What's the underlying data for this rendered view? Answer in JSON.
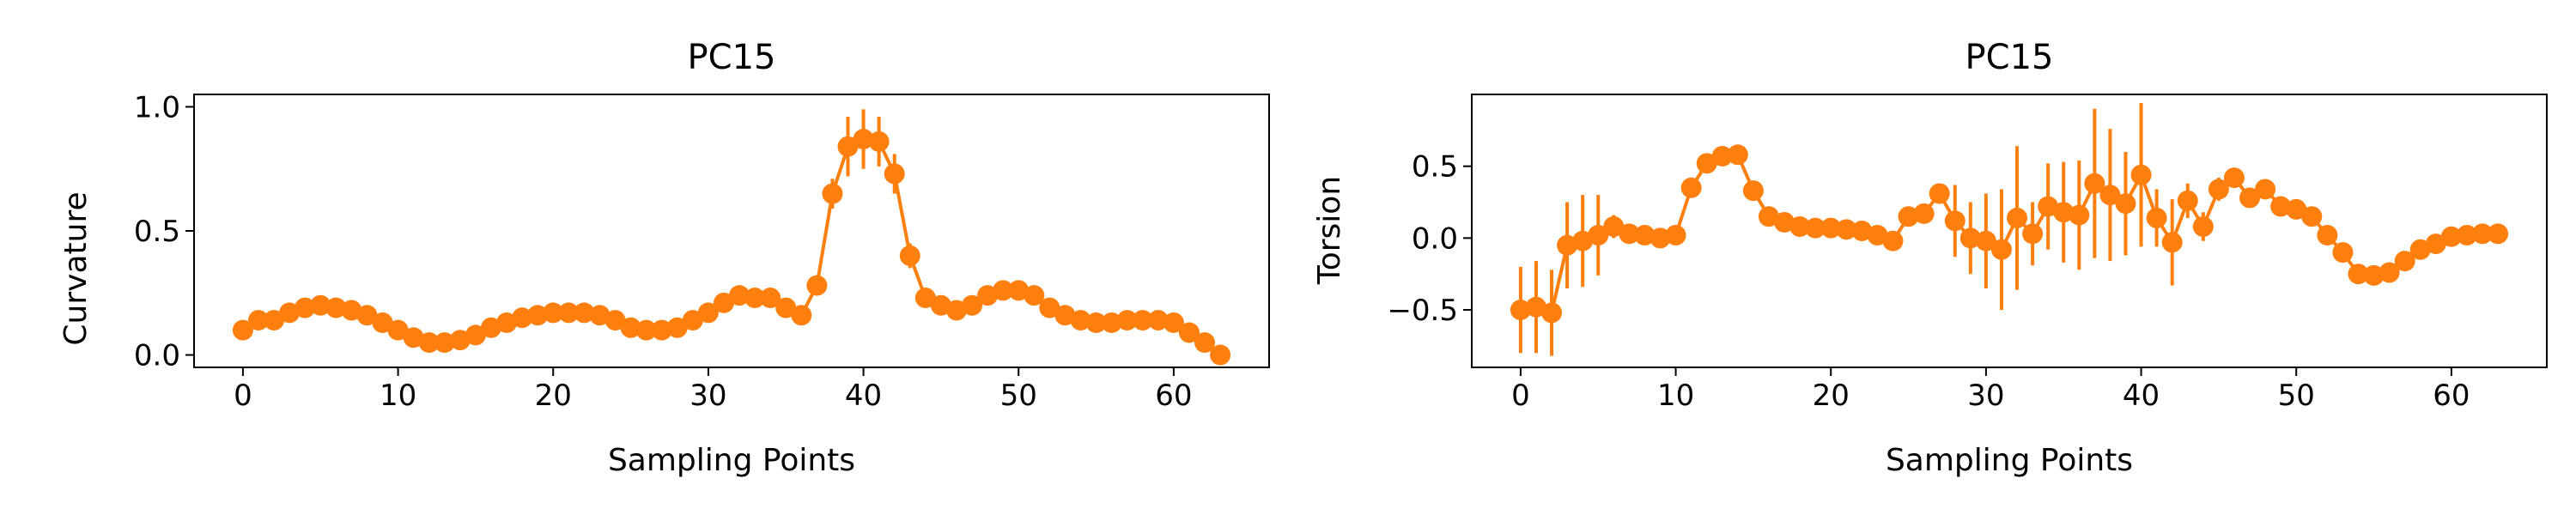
{
  "chart_data": [
    {
      "type": "line",
      "title": "PC15",
      "xlabel": "Sampling Points",
      "ylabel": "Curvature",
      "xlim": [
        -3.15,
        66.15
      ],
      "ylim": [
        -0.05,
        1.05
      ],
      "xticks": [
        0,
        10,
        20,
        30,
        40,
        50,
        60
      ],
      "xtick_labels": [
        "0",
        "10",
        "20",
        "30",
        "40",
        "50",
        "60"
      ],
      "yticks": [
        0.0,
        0.5,
        1.0
      ],
      "ytick_labels": [
        "0.0",
        "0.5",
        "1.0"
      ],
      "grid": false,
      "series": [
        {
          "color": "#ff7f0e",
          "marker": "circle",
          "x": [
            0,
            1,
            2,
            3,
            4,
            5,
            6,
            7,
            8,
            9,
            10,
            11,
            12,
            13,
            14,
            15,
            16,
            17,
            18,
            19,
            20,
            21,
            22,
            23,
            24,
            25,
            26,
            27,
            28,
            29,
            30,
            31,
            32,
            33,
            34,
            35,
            36,
            37,
            38,
            39,
            40,
            41,
            42,
            43,
            44,
            45,
            46,
            47,
            48,
            49,
            50,
            51,
            52,
            53,
            54,
            55,
            56,
            57,
            58,
            59,
            60,
            61,
            62,
            63
          ],
          "y": [
            0.1,
            0.14,
            0.14,
            0.17,
            0.19,
            0.2,
            0.19,
            0.18,
            0.16,
            0.13,
            0.1,
            0.07,
            0.05,
            0.05,
            0.06,
            0.08,
            0.11,
            0.13,
            0.15,
            0.16,
            0.17,
            0.17,
            0.17,
            0.16,
            0.14,
            0.11,
            0.1,
            0.1,
            0.11,
            0.14,
            0.17,
            0.21,
            0.24,
            0.23,
            0.23,
            0.19,
            0.16,
            0.28,
            0.65,
            0.84,
            0.87,
            0.86,
            0.73,
            0.4,
            0.23,
            0.2,
            0.18,
            0.2,
            0.24,
            0.26,
            0.26,
            0.24,
            0.19,
            0.16,
            0.14,
            0.13,
            0.13,
            0.14,
            0.14,
            0.14,
            0.13,
            0.09,
            0.05,
            0.0
          ],
          "err": [
            0.01,
            0.01,
            0.01,
            0.01,
            0.01,
            0.01,
            0.01,
            0.01,
            0.01,
            0.01,
            0.01,
            0.01,
            0.01,
            0.01,
            0.01,
            0.01,
            0.01,
            0.01,
            0.01,
            0.01,
            0.01,
            0.01,
            0.01,
            0.01,
            0.01,
            0.01,
            0.01,
            0.01,
            0.01,
            0.01,
            0.02,
            0.02,
            0.02,
            0.02,
            0.02,
            0.02,
            0.02,
            0.03,
            0.06,
            0.12,
            0.12,
            0.1,
            0.08,
            0.05,
            0.02,
            0.02,
            0.02,
            0.02,
            0.02,
            0.02,
            0.02,
            0.02,
            0.02,
            0.02,
            0.01,
            0.01,
            0.01,
            0.01,
            0.01,
            0.01,
            0.01,
            0.01,
            0.01,
            0.01
          ]
        }
      ]
    },
    {
      "type": "line",
      "title": "PC15",
      "xlabel": "Sampling Points",
      "ylabel": "Torsion",
      "xlim": [
        -3.15,
        66.15
      ],
      "ylim": [
        -0.9,
        1.0
      ],
      "xticks": [
        0,
        10,
        20,
        30,
        40,
        50,
        60
      ],
      "xtick_labels": [
        "0",
        "10",
        "20",
        "30",
        "40",
        "50",
        "60"
      ],
      "yticks": [
        -0.5,
        0.0,
        0.5
      ],
      "ytick_labels": [
        "−0.5",
        "0.0",
        "0.5"
      ],
      "grid": false,
      "series": [
        {
          "color": "#ff7f0e",
          "marker": "circle",
          "x": [
            0,
            1,
            2,
            3,
            4,
            5,
            6,
            7,
            8,
            9,
            10,
            11,
            12,
            13,
            14,
            15,
            16,
            17,
            18,
            19,
            20,
            21,
            22,
            23,
            24,
            25,
            26,
            27,
            28,
            29,
            30,
            31,
            32,
            33,
            34,
            35,
            36,
            37,
            38,
            39,
            40,
            41,
            42,
            43,
            44,
            45,
            46,
            47,
            48,
            49,
            50,
            51,
            52,
            53,
            54,
            55,
            56,
            57,
            58,
            59,
            60,
            61,
            62,
            63
          ],
          "y": [
            -0.5,
            -0.48,
            -0.52,
            -0.05,
            -0.02,
            0.02,
            0.08,
            0.03,
            0.02,
            0.0,
            0.02,
            0.35,
            0.52,
            0.57,
            0.58,
            0.33,
            0.15,
            0.11,
            0.08,
            0.07,
            0.07,
            0.06,
            0.05,
            0.02,
            -0.02,
            0.15,
            0.17,
            0.31,
            0.12,
            0.0,
            -0.02,
            -0.08,
            0.14,
            0.03,
            0.22,
            0.18,
            0.16,
            0.38,
            0.3,
            0.24,
            0.44,
            0.14,
            -0.03,
            0.26,
            0.08,
            0.34,
            0.42,
            0.28,
            0.34,
            0.22,
            0.2,
            0.15,
            0.02,
            -0.1,
            -0.25,
            -0.26,
            -0.24,
            -0.16,
            -0.08,
            -0.04,
            0.01,
            0.02,
            0.03,
            0.03
          ],
          "err": [
            0.3,
            0.32,
            0.3,
            0.3,
            0.32,
            0.28,
            0.08,
            0.04,
            0.04,
            0.04,
            0.04,
            0.05,
            0.05,
            0.06,
            0.05,
            0.05,
            0.04,
            0.03,
            0.02,
            0.02,
            0.02,
            0.02,
            0.02,
            0.02,
            0.03,
            0.04,
            0.05,
            0.06,
            0.25,
            0.25,
            0.33,
            0.42,
            0.5,
            0.22,
            0.3,
            0.35,
            0.38,
            0.52,
            0.46,
            0.36,
            0.5,
            0.2,
            0.3,
            0.12,
            0.1,
            0.08,
            0.06,
            0.07,
            0.06,
            0.04,
            0.04,
            0.04,
            0.03,
            0.04,
            0.04,
            0.05,
            0.04,
            0.03,
            0.03,
            0.03,
            0.03,
            0.03,
            0.03,
            0.03
          ]
        }
      ]
    }
  ]
}
